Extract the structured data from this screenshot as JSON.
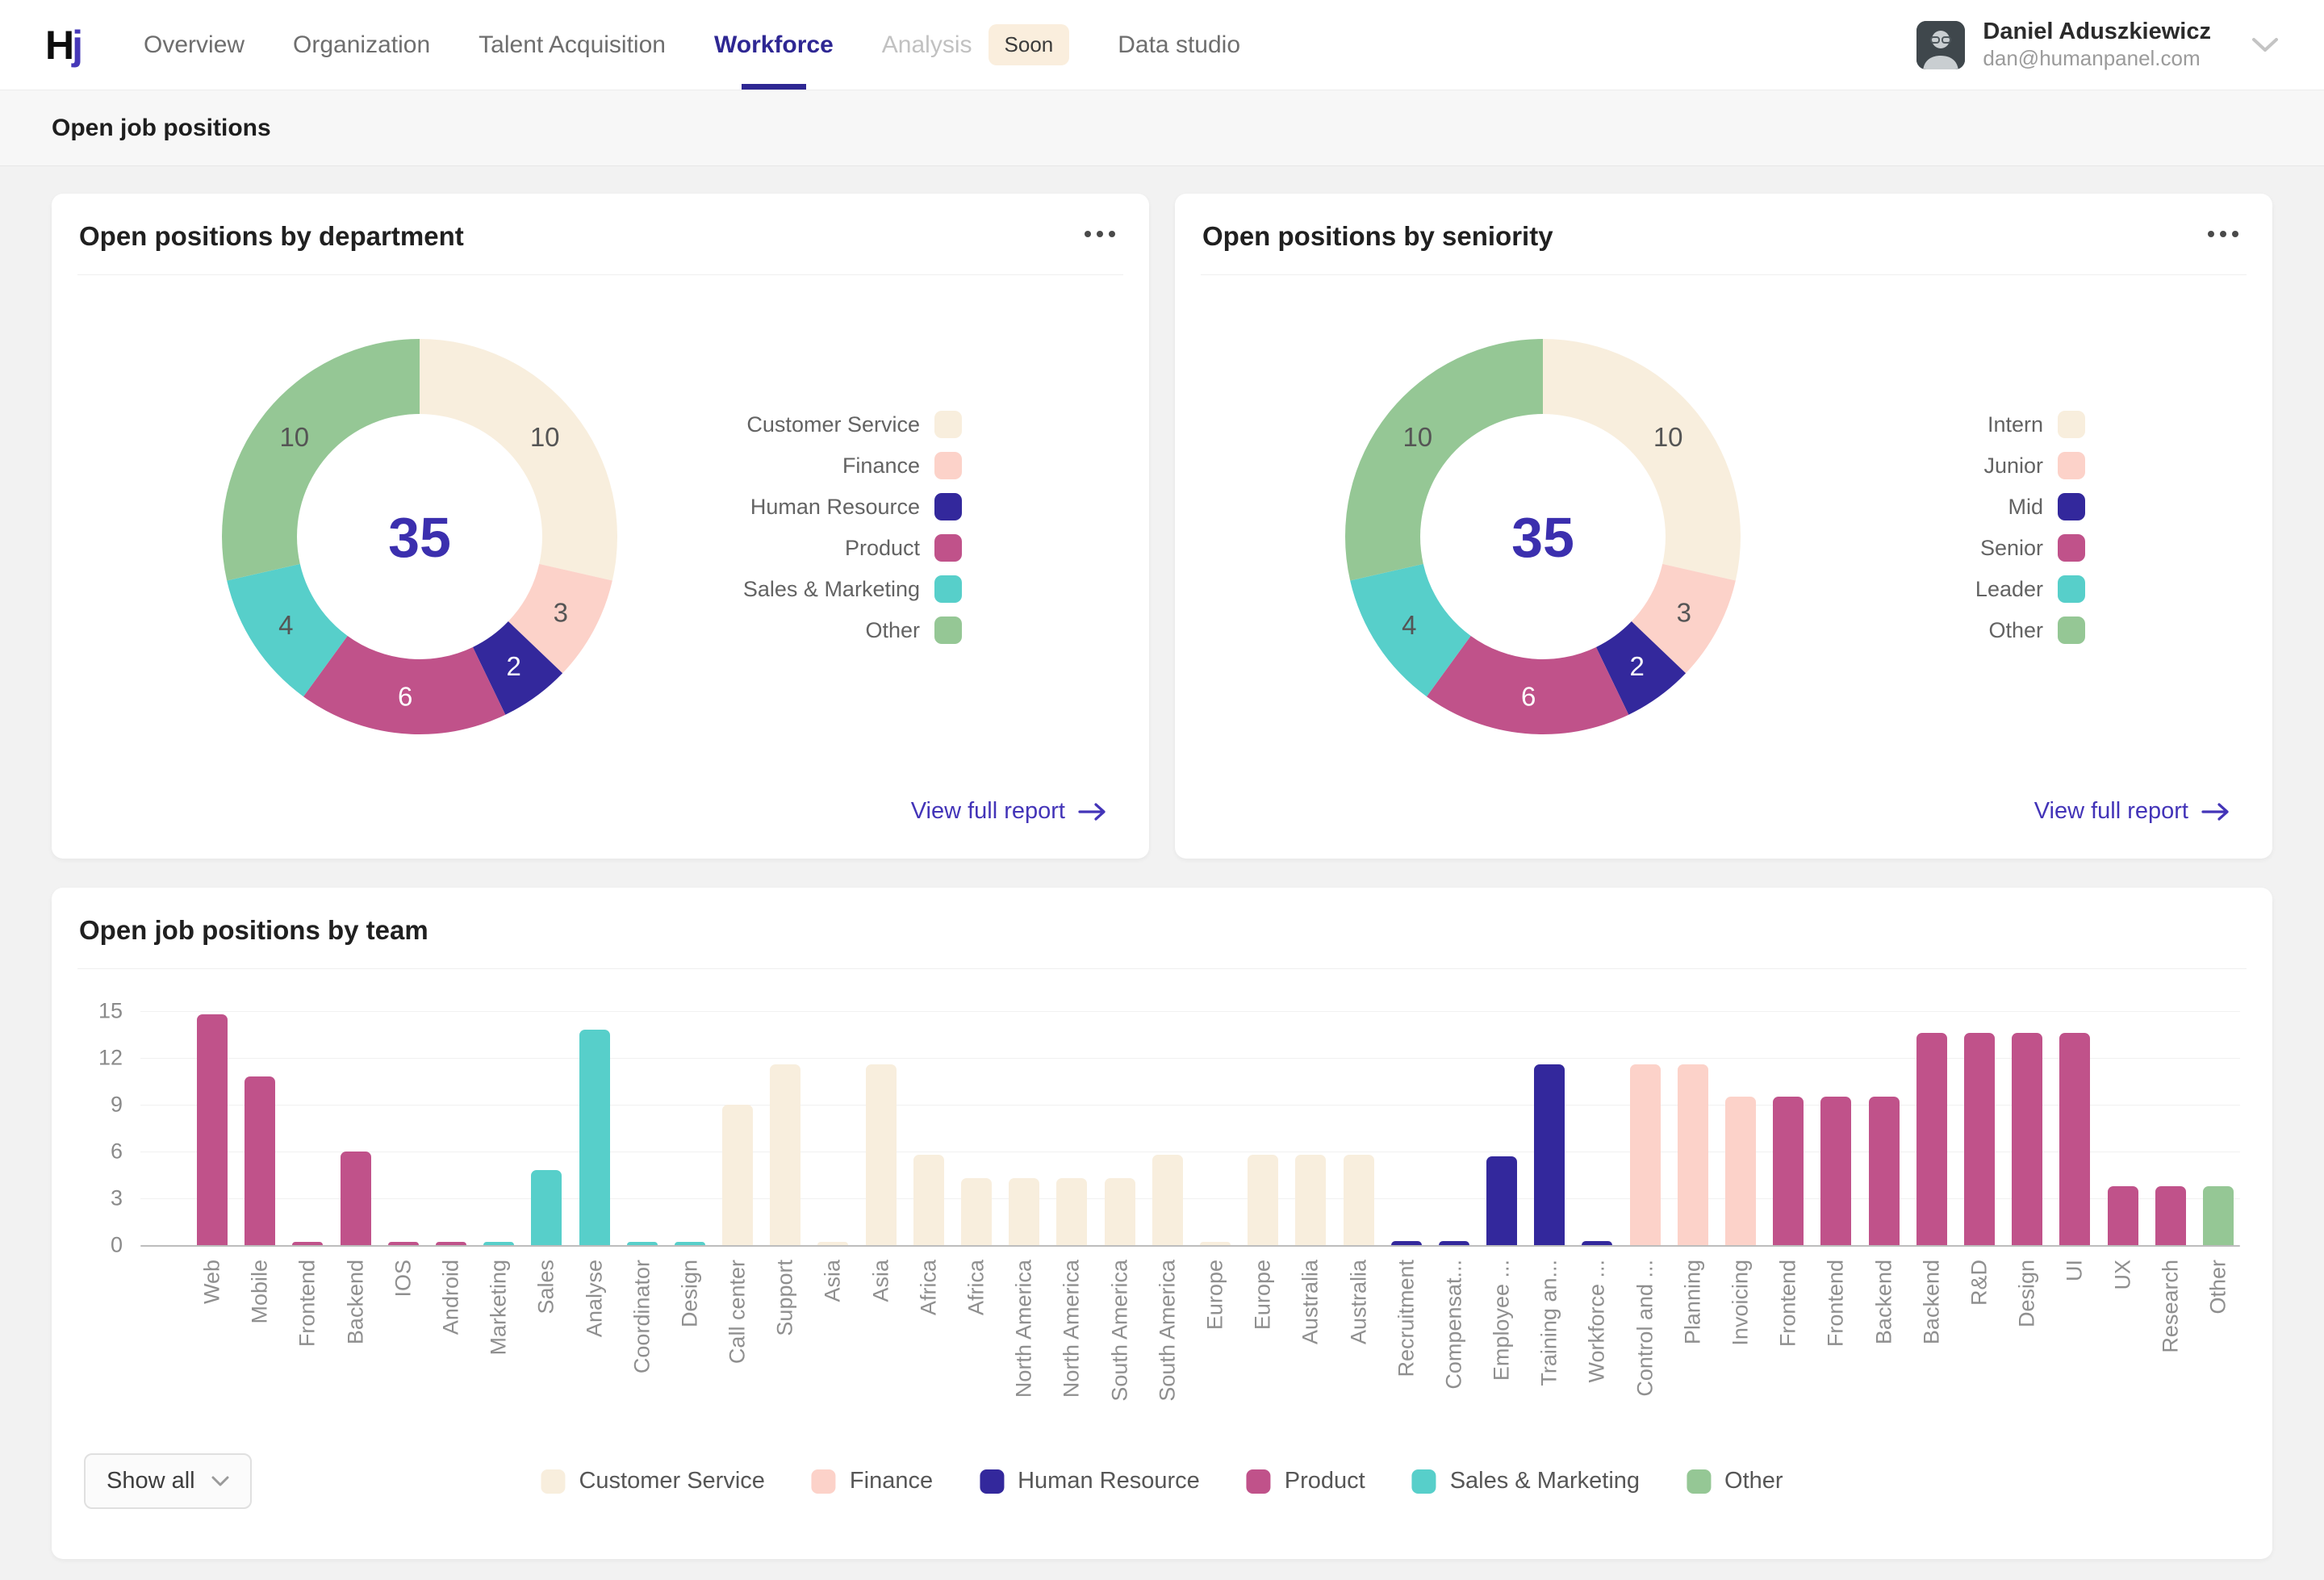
{
  "nav": {
    "logo": {
      "text_black": "H",
      "text_blue": "j"
    },
    "items": [
      {
        "label": "Overview",
        "state": "default"
      },
      {
        "label": "Organization",
        "state": "default"
      },
      {
        "label": "Talent Acquisition",
        "state": "default"
      },
      {
        "label": "Workforce",
        "state": "active"
      },
      {
        "label": "Analysis",
        "state": "disabled",
        "badge": "Soon"
      },
      {
        "label": "Data studio",
        "state": "default"
      }
    ],
    "user": {
      "name": "Daniel Aduszkiewicz",
      "email": "dan@humanpanel.com"
    }
  },
  "subheader": {
    "title": "Open job positions"
  },
  "palette": {
    "accent_link": "#4334b8",
    "total_number": "#3b2fae",
    "active_nav": "#2e2793"
  },
  "group_colors": {
    "Customer Service": "#f8eedd",
    "Finance": "#fcd2c9",
    "Human Resource": "#33289c",
    "Product": "#c0528a",
    "Sales & Marketing": "#57cfca",
    "Other": "#95c795"
  },
  "donut_cards": [
    {
      "title": "Open positions by department",
      "total": "35",
      "link": "View full report",
      "segments": [
        {
          "label": "Customer Service",
          "value": 10,
          "color": "#f8eedd"
        },
        {
          "label": "Finance",
          "value": 3,
          "color": "#fcd2c9"
        },
        {
          "label": "Human Resource",
          "value": 2,
          "color": "#33289c"
        },
        {
          "label": "Product",
          "value": 6,
          "color": "#c0528a"
        },
        {
          "label": "Sales & Marketing",
          "value": 4,
          "color": "#57cfca"
        },
        {
          "label": "Other",
          "value": 10,
          "color": "#95c795"
        }
      ]
    },
    {
      "title": "Open positions by seniority",
      "total": "35",
      "link": "View full report",
      "segments": [
        {
          "label": "Intern",
          "value": 10,
          "color": "#f8eedd"
        },
        {
          "label": "Junior",
          "value": 3,
          "color": "#fcd2c9"
        },
        {
          "label": "Mid",
          "value": 2,
          "color": "#33289c"
        },
        {
          "label": "Senior",
          "value": 6,
          "color": "#c0528a"
        },
        {
          "label": "Leader",
          "value": 4,
          "color": "#57cfca"
        },
        {
          "label": "Other",
          "value": 10,
          "color": "#95c795"
        }
      ]
    }
  ],
  "team_chart": {
    "type": "bar",
    "title": "Open job positions by team",
    "show_all_label": "Show all",
    "y_ticks": [
      15,
      12,
      9,
      6,
      3,
      0
    ],
    "y_max": 15,
    "legend": [
      "Customer Service",
      "Finance",
      "Human Resource",
      "Product",
      "Sales & Marketing",
      "Other"
    ],
    "bars": [
      {
        "label": "Web",
        "value": 14.8,
        "group": "Product"
      },
      {
        "label": "Mobile",
        "value": 10.8,
        "group": "Product"
      },
      {
        "label": "Frontend",
        "value": 0.2,
        "group": "Product"
      },
      {
        "label": "Backend",
        "value": 6,
        "group": "Product"
      },
      {
        "label": "IOS",
        "value": 0.2,
        "group": "Product"
      },
      {
        "label": "Android",
        "value": 0.2,
        "group": "Product"
      },
      {
        "label": "Marketing",
        "value": 0.2,
        "group": "Sales & Marketing"
      },
      {
        "label": "Sales",
        "value": 4.8,
        "group": "Sales & Marketing"
      },
      {
        "label": "Analyse",
        "value": 13.8,
        "group": "Sales & Marketing"
      },
      {
        "label": "Coordinator",
        "value": 0.2,
        "group": "Sales & Marketing"
      },
      {
        "label": "Design",
        "value": 0.2,
        "group": "Sales & Marketing"
      },
      {
        "label": "Call center",
        "value": 9,
        "group": "Customer Service"
      },
      {
        "label": "Support",
        "value": 11.6,
        "group": "Customer Service"
      },
      {
        "label": "Asia",
        "value": 0.15,
        "group": "Customer Service"
      },
      {
        "label": "Asia",
        "value": 11.6,
        "group": "Customer Service"
      },
      {
        "label": "Africa",
        "value": 5.8,
        "group": "Customer Service"
      },
      {
        "label": "Africa",
        "value": 4.3,
        "group": "Customer Service"
      },
      {
        "label": "North America",
        "value": 4.3,
        "group": "Customer Service"
      },
      {
        "label": "North America",
        "value": 4.3,
        "group": "Customer Service"
      },
      {
        "label": "South America",
        "value": 4.3,
        "group": "Customer Service"
      },
      {
        "label": "South America",
        "value": 5.8,
        "group": "Customer Service"
      },
      {
        "label": "Europe",
        "value": 0.15,
        "group": "Customer Service"
      },
      {
        "label": "Europe",
        "value": 5.8,
        "group": "Customer Service"
      },
      {
        "label": "Australia",
        "value": 5.8,
        "group": "Customer Service"
      },
      {
        "label": "Australia",
        "value": 5.8,
        "group": "Customer Service"
      },
      {
        "label": "Recruitment",
        "value": 0.25,
        "group": "Human Resource"
      },
      {
        "label": "Compensat...",
        "value": 0.25,
        "group": "Human Resource"
      },
      {
        "label": "Employee ...",
        "value": 5.7,
        "group": "Human Resource"
      },
      {
        "label": "Training an...",
        "value": 11.6,
        "group": "Human Resource"
      },
      {
        "label": "Workforce ...",
        "value": 0.25,
        "group": "Human Resource"
      },
      {
        "label": "Control and ...",
        "value": 11.6,
        "group": "Finance"
      },
      {
        "label": "Planning",
        "value": 11.6,
        "group": "Finance"
      },
      {
        "label": "Invoicing",
        "value": 9.5,
        "group": "Finance"
      },
      {
        "label": "Frontend",
        "value": 9.5,
        "group": "Product"
      },
      {
        "label": "Frontend",
        "value": 9.5,
        "group": "Product"
      },
      {
        "label": "Backend",
        "value": 9.5,
        "group": "Product"
      },
      {
        "label": "Backend",
        "value": 13.6,
        "group": "Product"
      },
      {
        "label": "R&D",
        "value": 13.6,
        "group": "Product"
      },
      {
        "label": "Design",
        "value": 13.6,
        "group": "Product"
      },
      {
        "label": "UI",
        "value": 13.6,
        "group": "Product"
      },
      {
        "label": "UX",
        "value": 3.8,
        "group": "Product"
      },
      {
        "label": "Research",
        "value": 3.8,
        "group": "Product"
      },
      {
        "label": "Other",
        "value": 3.8,
        "group": "Other"
      }
    ]
  }
}
